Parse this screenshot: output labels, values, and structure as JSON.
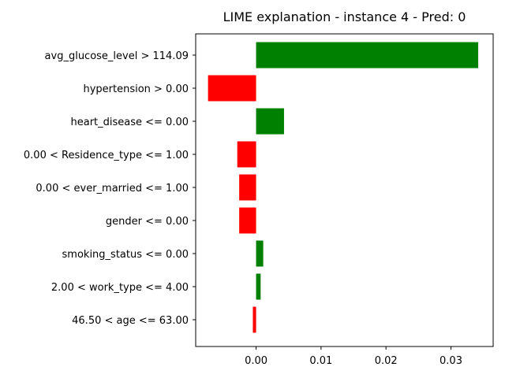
{
  "chart_data": {
    "type": "bar",
    "orientation": "horizontal",
    "title": "LIME explanation - instance 4 - Pred: 0",
    "xlabel": "",
    "ylabel": "",
    "categories": [
      "avg_glucose_level > 114.09",
      "hypertension > 0.00",
      "heart_disease <= 0.00",
      "0.00 < Residence_type <= 1.00",
      "0.00 < ever_married <= 1.00",
      "gender <= 0.00",
      "smoking_status <= 0.00",
      "2.00 < work_type <= 4.00",
      "46.50 < age <= 63.00"
    ],
    "values": [
      0.0342,
      -0.0074,
      0.0043,
      -0.0029,
      -0.0026,
      -0.0026,
      0.0011,
      0.0007,
      -0.0005
    ],
    "xlim": [
      -0.0093,
      0.0365
    ],
    "xticks": [
      0.0,
      0.01,
      0.02,
      0.03
    ],
    "xtick_labels": [
      "0.00",
      "0.01",
      "0.02",
      "0.03"
    ],
    "colors": {
      "positive": "#008000",
      "negative": "#ff0000"
    },
    "grid": false
  }
}
